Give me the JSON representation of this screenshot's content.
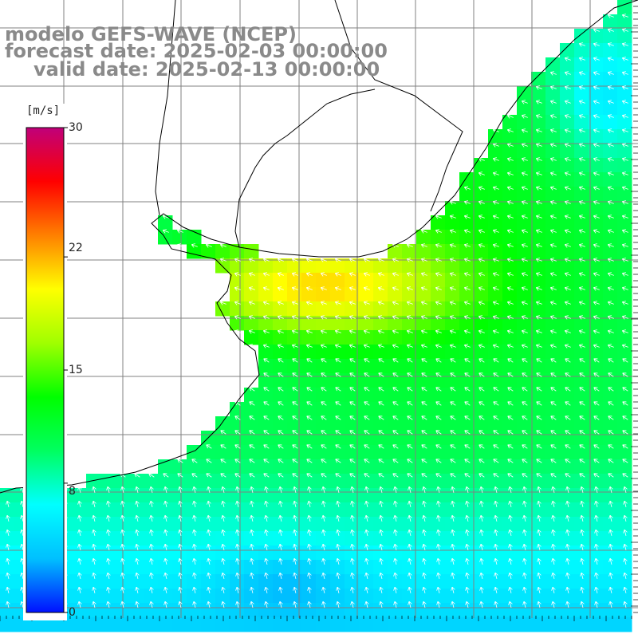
{
  "title": {
    "line1": "modelo GEFS-WAVE (NCEP)",
    "line2": "forecast date: 2025-02-03 00:00:00",
    "line3": "valid date: 2025-02-13 00:00:00"
  },
  "colorbar": {
    "unit": "[m/s]",
    "ticks": [
      {
        "label": "30",
        "value": 30
      },
      {
        "label": "22",
        "value": 22
      },
      {
        "label": "15",
        "value": 15
      },
      {
        "label": "8",
        "value": 8
      },
      {
        "label": "0",
        "value": 0
      }
    ],
    "range": [
      0,
      30
    ],
    "colors": [
      "#0010ff",
      "#00c0ff",
      "#00ffff",
      "#00ff60",
      "#00ff00",
      "#a0ff00",
      "#ffff00",
      "#ff8000",
      "#ff0000",
      "#c0007a"
    ]
  },
  "map": {
    "variable": "wind speed (m/s) with direction arrows",
    "land_color": "#ffffff",
    "grid_color": "#808080",
    "coast_color": "#000000",
    "arrow_color": "#ffffff"
  }
}
